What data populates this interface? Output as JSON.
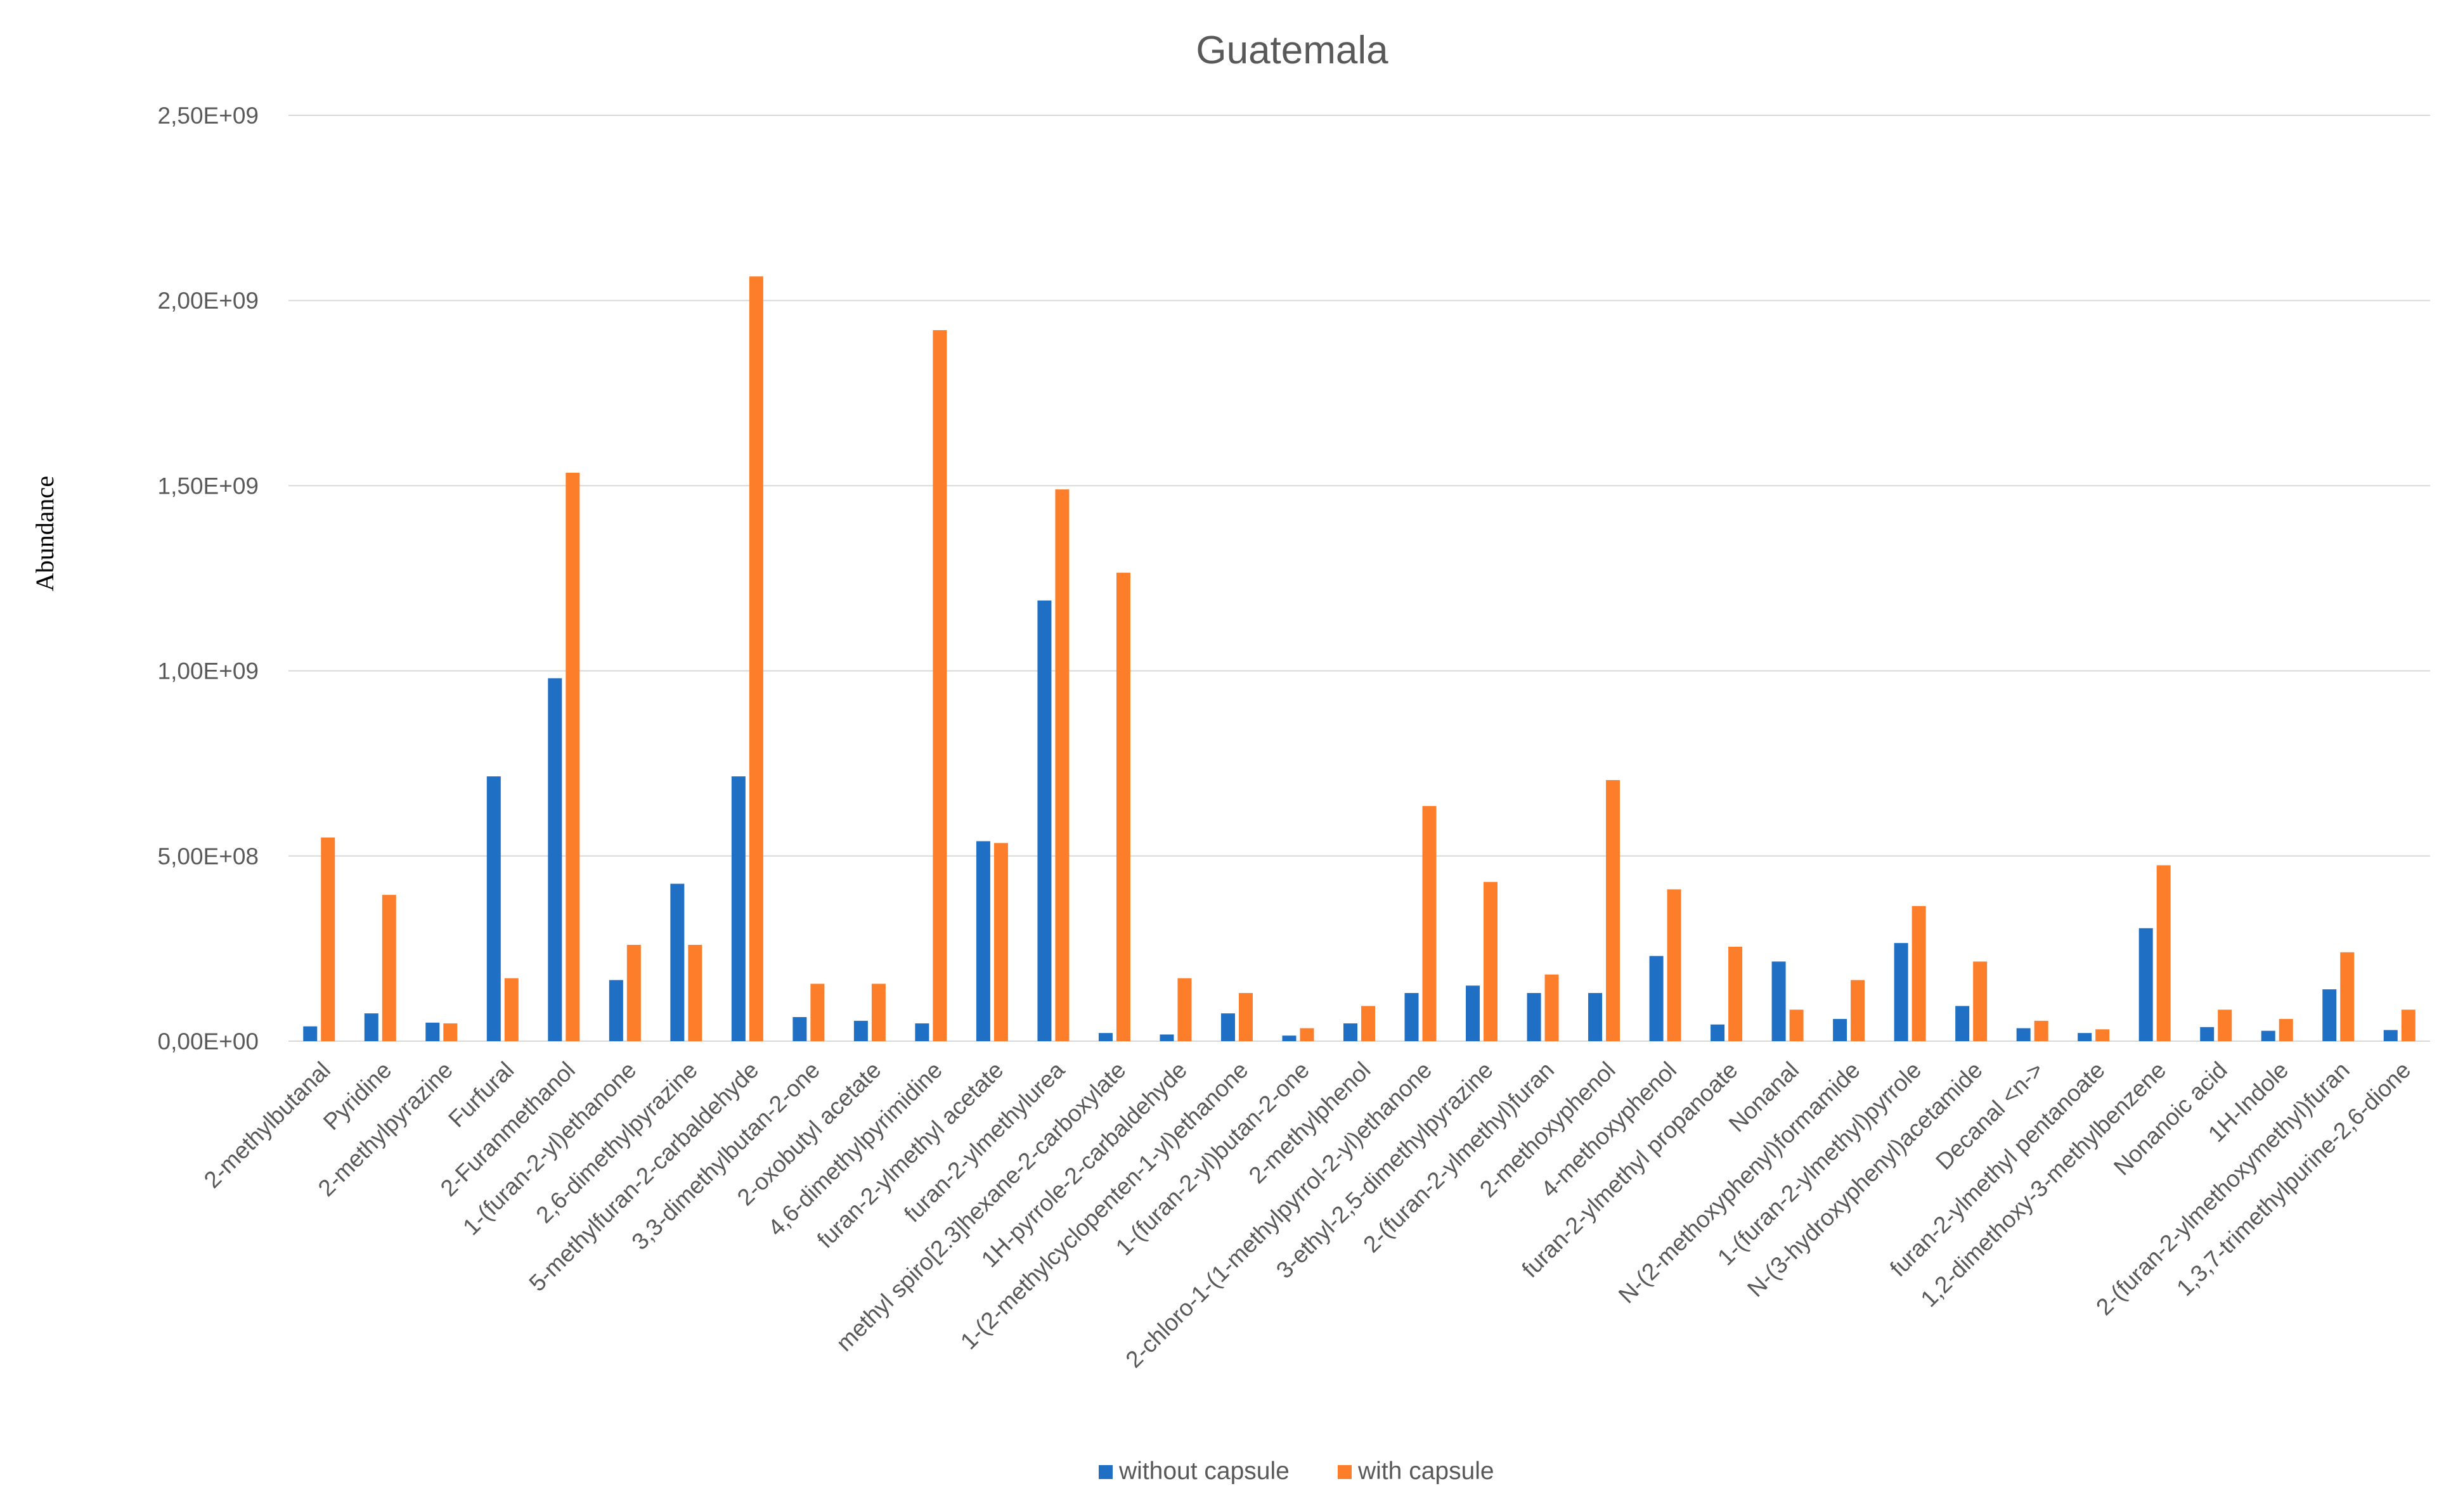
{
  "chart_data": {
    "type": "bar",
    "title": "Guatemala",
    "xlabel": "",
    "ylabel": "Abundance",
    "ylim": [
      0,
      2500000000
    ],
    "yticks": [
      0,
      500000000,
      1000000000,
      1500000000,
      2000000000,
      2500000000
    ],
    "ytick_labels": [
      "0,00E+00",
      "5,00E+08",
      "1,00E+09",
      "1,50E+09",
      "2,00E+09",
      "2,50E+09"
    ],
    "grid": true,
    "legend_position": "bottom",
    "categories": [
      "2-methylbutanal",
      "Pyridine",
      "2-methylpyrazine",
      "Furfural",
      "2-Furanmethanol",
      "1-(furan-2-yl)ethanone",
      "2,6-dimethylpyrazine",
      "5-methylfuran-2-carbaldehyde",
      "3,3-dimethylbutan-2-one",
      "2-oxobutyl acetate",
      "4,6-dimethylpyrimidine",
      "furan-2-ylmethyl acetate",
      "furan-2-ylmethylurea",
      "methyl spiro[2.3]hexane-2-carboxylate",
      "1H-pyrrole-2-carbaldehyde",
      "1-(2-methylcyclopenten-1-yl)ethanone",
      "1-(furan-2-yl)butan-2-one",
      "2-methylphenol",
      "2-chloro-1-(1-methylpyrrol-2-yl)ethanone",
      "3-ethyl-2,5-dimethylpyrazine",
      "2-(furan-2-ylmethyl)furan",
      "2-methoxyphenol",
      "4-methoxyphenol",
      "furan-2-ylmethyl propanoate",
      "Nonanal",
      "N-(2-methoxyphenyl)formamide",
      "1-(furan-2-ylmethyl)pyrrole",
      "N-(3-hydroxyphenyl)acetamide",
      "Decanal <n->",
      "furan-2-ylmethyl pentanoate",
      "1,2-dimethoxy-3-methylbenzene",
      "Nonanoic acid",
      "1H-Indole",
      "2-(furan-2-ylmethoxymethyl)furan",
      "1,3,7-trimethylpurine-2,6-dione"
    ],
    "series": [
      {
        "name": "without capsule",
        "color": "#1f6fc5",
        "values": [
          40000000,
          75000000,
          50000000,
          715000000,
          980000000,
          165000000,
          425000000,
          715000000,
          65000000,
          55000000,
          48000000,
          540000000,
          1190000000,
          22000000,
          18000000,
          75000000,
          15000000,
          48000000,
          130000000,
          150000000,
          130000000,
          130000000,
          230000000,
          45000000,
          215000000,
          60000000,
          265000000,
          95000000,
          35000000,
          22000000,
          305000000,
          38000000,
          28000000,
          140000000,
          30000000
        ]
      },
      {
        "name": "with capsule",
        "color": "#fd7e2a",
        "values": [
          550000000,
          395000000,
          48000000,
          170000000,
          1535000000,
          260000000,
          260000000,
          2065000000,
          155000000,
          155000000,
          1920000000,
          535000000,
          1490000000,
          1265000000,
          170000000,
          130000000,
          35000000,
          95000000,
          635000000,
          430000000,
          180000000,
          705000000,
          410000000,
          255000000,
          85000000,
          165000000,
          365000000,
          215000000,
          55000000,
          32000000,
          475000000,
          85000000,
          60000000,
          240000000,
          85000000
        ]
      }
    ]
  }
}
